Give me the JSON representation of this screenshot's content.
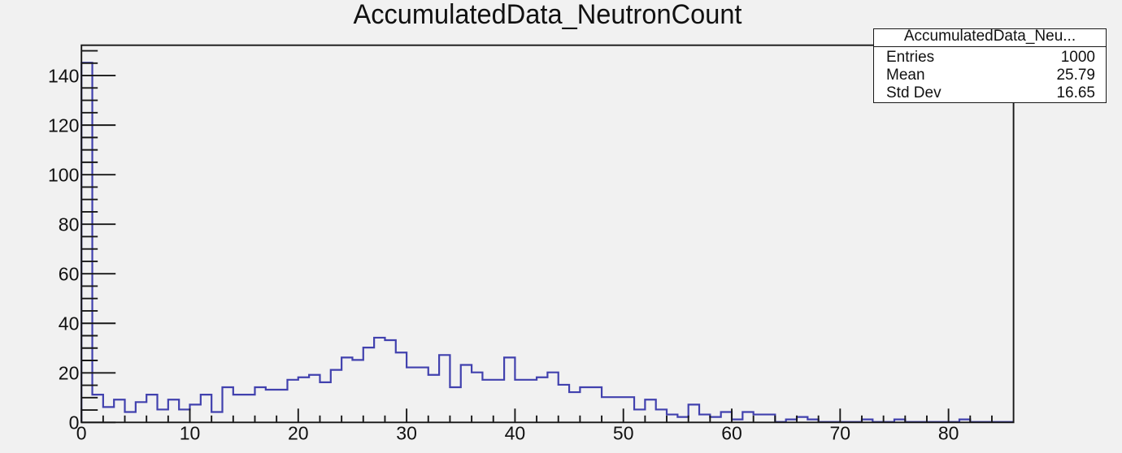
{
  "title": "AccumulatedData_NeutronCount",
  "stats_box": {
    "title": "AccumulatedData_Neu...",
    "rows": [
      {
        "label": "Entries",
        "value": "1000"
      },
      {
        "label": "Mean",
        "value": "25.79"
      },
      {
        "label": "Std Dev",
        "value": "16.65"
      }
    ]
  },
  "chart_data": {
    "type": "bar",
    "subtype": "root-histogram-step-outline",
    "title": "AccumulatedData_NeutronCount",
    "xlabel": "",
    "ylabel": "",
    "xlim": [
      0,
      86
    ],
    "ylim": [
      0,
      152.25
    ],
    "grid": false,
    "legend_position": "none",
    "bin_start": 0,
    "bin_width": 1,
    "values": [
      145,
      11,
      6,
      9,
      4,
      8,
      11,
      5,
      9,
      5,
      7,
      11,
      4,
      14,
      11,
      11,
      14,
      13,
      13,
      17,
      18,
      19,
      16,
      21,
      26,
      25,
      30,
      34,
      33,
      28,
      22,
      22,
      19,
      27,
      14,
      23,
      20,
      17,
      17,
      26,
      17,
      17,
      18,
      20,
      15,
      12,
      14,
      14,
      10,
      10,
      10,
      5,
      9,
      5,
      3,
      2,
      7,
      3,
      2,
      4,
      1,
      4,
      3,
      3,
      0,
      1,
      2,
      1,
      0,
      0,
      0,
      0,
      1,
      0,
      0,
      1,
      0,
      0,
      0,
      0,
      0,
      1,
      0,
      0,
      0,
      0
    ],
    "x_major_ticks": [
      0,
      10,
      20,
      30,
      40,
      50,
      60,
      70,
      80
    ],
    "x_minor_tick_step": 2,
    "y_major_ticks": [
      0,
      20,
      40,
      60,
      80,
      100,
      120,
      140
    ],
    "y_minor_tick_step": 5,
    "entries": 1000,
    "mean": 25.79,
    "std_dev": 16.65,
    "line_color": "#4141ae",
    "axis_color": "#181818",
    "text_color": "#111111",
    "background_color": "#f1f1f1"
  }
}
